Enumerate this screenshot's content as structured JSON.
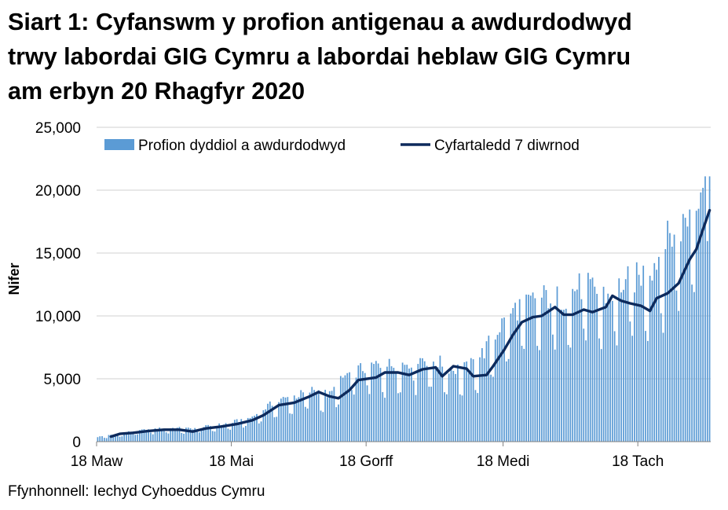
{
  "title_lines": [
    "Siart 1: Cyfanswm y profion antigenau a awdurdodwyd",
    "trwy labordai GIG Cymru a labordai heblaw GIG Cymru",
    "am erbyn 20 Rhagfyr 2020"
  ],
  "source": "Ffynhonnell: Iechyd Cyhoeddus Cymru",
  "colors": {
    "bars": "#5b9bd5",
    "line": "#0d2a5c",
    "grid": "#d0d0d0",
    "axis": "#808080"
  },
  "chart_data": {
    "type": "bar",
    "ylabel": "Nifer",
    "xlabel": "",
    "ylim": [
      0,
      25000
    ],
    "yticks": [
      0,
      5000,
      10000,
      15000,
      20000,
      25000
    ],
    "ytick_labels": [
      "0",
      "5,000",
      "10,000",
      "15,000",
      "20,000",
      "25,000"
    ],
    "start_date": "2020-03-18",
    "end_date": "2020-12-20",
    "xticks": [
      {
        "date": "2020-03-18",
        "label": "18 Maw"
      },
      {
        "date": "2020-05-18",
        "label": "18 Mai"
      },
      {
        "date": "2020-07-18",
        "label": "18 Gorff"
      },
      {
        "date": "2020-09-18",
        "label": "18 Medi"
      },
      {
        "date": "2020-11-18",
        "label": "18 Tach"
      }
    ],
    "legend_position": "top",
    "series": [
      {
        "name": "Profion dyddiol a awdurdodwyd",
        "kind": "bar",
        "weekly_pattern": "lower on weekends",
        "anchors": [
          [
            "2020-03-18",
            350
          ],
          [
            "2020-03-25",
            500
          ],
          [
            "2020-04-01",
            700
          ],
          [
            "2020-04-08",
            850
          ],
          [
            "2020-04-15",
            950
          ],
          [
            "2020-04-22",
            1000
          ],
          [
            "2020-04-29",
            950
          ],
          [
            "2020-05-06",
            1100
          ],
          [
            "2020-05-13",
            1250
          ],
          [
            "2020-05-20",
            1500
          ],
          [
            "2020-05-27",
            1800
          ],
          [
            "2020-06-03",
            2600
          ],
          [
            "2020-06-10",
            3100
          ],
          [
            "2020-06-17",
            3400
          ],
          [
            "2020-06-24",
            3800
          ],
          [
            "2020-07-01",
            3400
          ],
          [
            "2020-07-08",
            4800
          ],
          [
            "2020-07-15",
            5300
          ],
          [
            "2020-07-22",
            5600
          ],
          [
            "2020-07-29",
            5600
          ],
          [
            "2020-08-05",
            5800
          ],
          [
            "2020-08-12",
            6100
          ],
          [
            "2020-08-19",
            5800
          ],
          [
            "2020-08-26",
            5300
          ],
          [
            "2020-09-02",
            5400
          ],
          [
            "2020-09-09",
            6600
          ],
          [
            "2020-09-16",
            8400
          ],
          [
            "2020-09-23",
            9700
          ],
          [
            "2020-09-30",
            10200
          ],
          [
            "2020-10-07",
            10600
          ],
          [
            "2020-10-14",
            10400
          ],
          [
            "2020-10-21",
            11300
          ],
          [
            "2020-10-28",
            11200
          ],
          [
            "2020-11-04",
            10600
          ],
          [
            "2020-11-11",
            11600
          ],
          [
            "2020-11-18",
            12000
          ],
          [
            "2020-11-25",
            13000
          ],
          [
            "2020-12-02",
            15000
          ],
          [
            "2020-12-09",
            16000
          ],
          [
            "2020-12-16",
            19000
          ],
          [
            "2020-12-20",
            20500
          ]
        ],
        "max_value": 21100
      },
      {
        "name": "Cyfartaledd 7 diwrnod",
        "kind": "line",
        "points": [
          [
            "2020-03-24",
            400
          ],
          [
            "2020-03-28",
            620
          ],
          [
            "2020-04-03",
            700
          ],
          [
            "2020-04-10",
            850
          ],
          [
            "2020-04-17",
            950
          ],
          [
            "2020-04-24",
            950
          ],
          [
            "2020-04-30",
            800
          ],
          [
            "2020-05-06",
            1050
          ],
          [
            "2020-05-13",
            1200
          ],
          [
            "2020-05-20",
            1400
          ],
          [
            "2020-05-27",
            1700
          ],
          [
            "2020-06-01",
            2100
          ],
          [
            "2020-06-08",
            2900
          ],
          [
            "2020-06-15",
            3100
          ],
          [
            "2020-06-22",
            3600
          ],
          [
            "2020-06-26",
            3950
          ],
          [
            "2020-07-01",
            3600
          ],
          [
            "2020-07-05",
            3450
          ],
          [
            "2020-07-10",
            4100
          ],
          [
            "2020-07-14",
            4900
          ],
          [
            "2020-07-22",
            5100
          ],
          [
            "2020-07-26",
            5500
          ],
          [
            "2020-08-01",
            5500
          ],
          [
            "2020-08-06",
            5300
          ],
          [
            "2020-08-12",
            5750
          ],
          [
            "2020-08-18",
            5900
          ],
          [
            "2020-08-21",
            5200
          ],
          [
            "2020-08-26",
            6000
          ],
          [
            "2020-09-01",
            5800
          ],
          [
            "2020-09-04",
            5200
          ],
          [
            "2020-09-10",
            5300
          ],
          [
            "2020-09-13",
            6000
          ],
          [
            "2020-09-18",
            7300
          ],
          [
            "2020-09-22",
            8500
          ],
          [
            "2020-09-26",
            9500
          ],
          [
            "2020-10-01",
            9900
          ],
          [
            "2020-10-05",
            10000
          ],
          [
            "2020-10-11",
            10700
          ],
          [
            "2020-10-15",
            10100
          ],
          [
            "2020-10-19",
            10100
          ],
          [
            "2020-10-24",
            10500
          ],
          [
            "2020-10-28",
            10300
          ],
          [
            "2020-11-03",
            10700
          ],
          [
            "2020-11-06",
            11600
          ],
          [
            "2020-11-10",
            11200
          ],
          [
            "2020-11-14",
            11000
          ],
          [
            "2020-11-19",
            10800
          ],
          [
            "2020-11-23",
            10400
          ],
          [
            "2020-11-26",
            11400
          ],
          [
            "2020-12-01",
            11800
          ],
          [
            "2020-12-06",
            12600
          ],
          [
            "2020-12-11",
            14500
          ],
          [
            "2020-12-14",
            15300
          ],
          [
            "2020-12-17",
            16900
          ],
          [
            "2020-12-20",
            18400
          ]
        ]
      }
    ]
  }
}
